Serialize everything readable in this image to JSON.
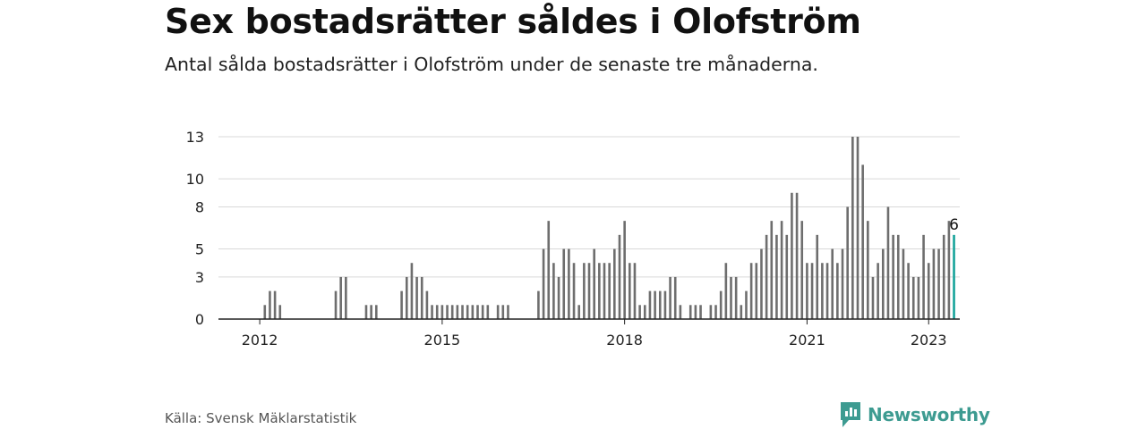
{
  "title": "Sex bostadsrätter såldes i Olofström",
  "subtitle": "Antal sålda bostadsrätter i Olofström under de senaste tre månaderna.",
  "source": "Källa: Svensk Mäklarstatistik",
  "brand": {
    "name": "Newsworthy",
    "icon": "newsworthy-logo-icon",
    "color": "#3d9b91"
  },
  "colors": {
    "bar": "#6e6e6e",
    "highlight": "#16a39a",
    "grid": "#d9d9d9",
    "axis": "#222222"
  },
  "chart_data": {
    "type": "bar",
    "start": "2011-06",
    "xticks": [
      {
        "label": "2012",
        "index": 7
      },
      {
        "label": "2015",
        "index": 43
      },
      {
        "label": "2018",
        "index": 79
      },
      {
        "label": "2021",
        "index": 115
      },
      {
        "label": "2023",
        "index": 139
      }
    ],
    "yticks": [
      0,
      3,
      5,
      8,
      10,
      13
    ],
    "ylim": [
      0,
      13
    ],
    "values": [
      0,
      0,
      0,
      0,
      0,
      0,
      0,
      0,
      1,
      2,
      2,
      1,
      0,
      0,
      0,
      0,
      0,
      0,
      0,
      0,
      0,
      0,
      2,
      3,
      3,
      0,
      0,
      0,
      1,
      1,
      1,
      0,
      0,
      0,
      0,
      2,
      3,
      4,
      3,
      3,
      2,
      1,
      1,
      1,
      1,
      1,
      1,
      1,
      1,
      1,
      1,
      1,
      1,
      0,
      1,
      1,
      1,
      0,
      0,
      0,
      0,
      0,
      2,
      5,
      7,
      4,
      3,
      5,
      5,
      4,
      1,
      4,
      4,
      5,
      4,
      4,
      4,
      5,
      6,
      7,
      4,
      4,
      1,
      1,
      2,
      2,
      2,
      2,
      3,
      3,
      1,
      0,
      1,
      1,
      1,
      0,
      1,
      1,
      2,
      4,
      3,
      3,
      1,
      2,
      4,
      4,
      5,
      6,
      7,
      6,
      7,
      6,
      9,
      9,
      7,
      4,
      4,
      6,
      4,
      4,
      5,
      4,
      5,
      8,
      13,
      13,
      11,
      7,
      3,
      4,
      5,
      8,
      6,
      6,
      5,
      4,
      3,
      3,
      6,
      4,
      5,
      5,
      6,
      7,
      6
    ],
    "highlight_last": true,
    "last_label": "6"
  }
}
